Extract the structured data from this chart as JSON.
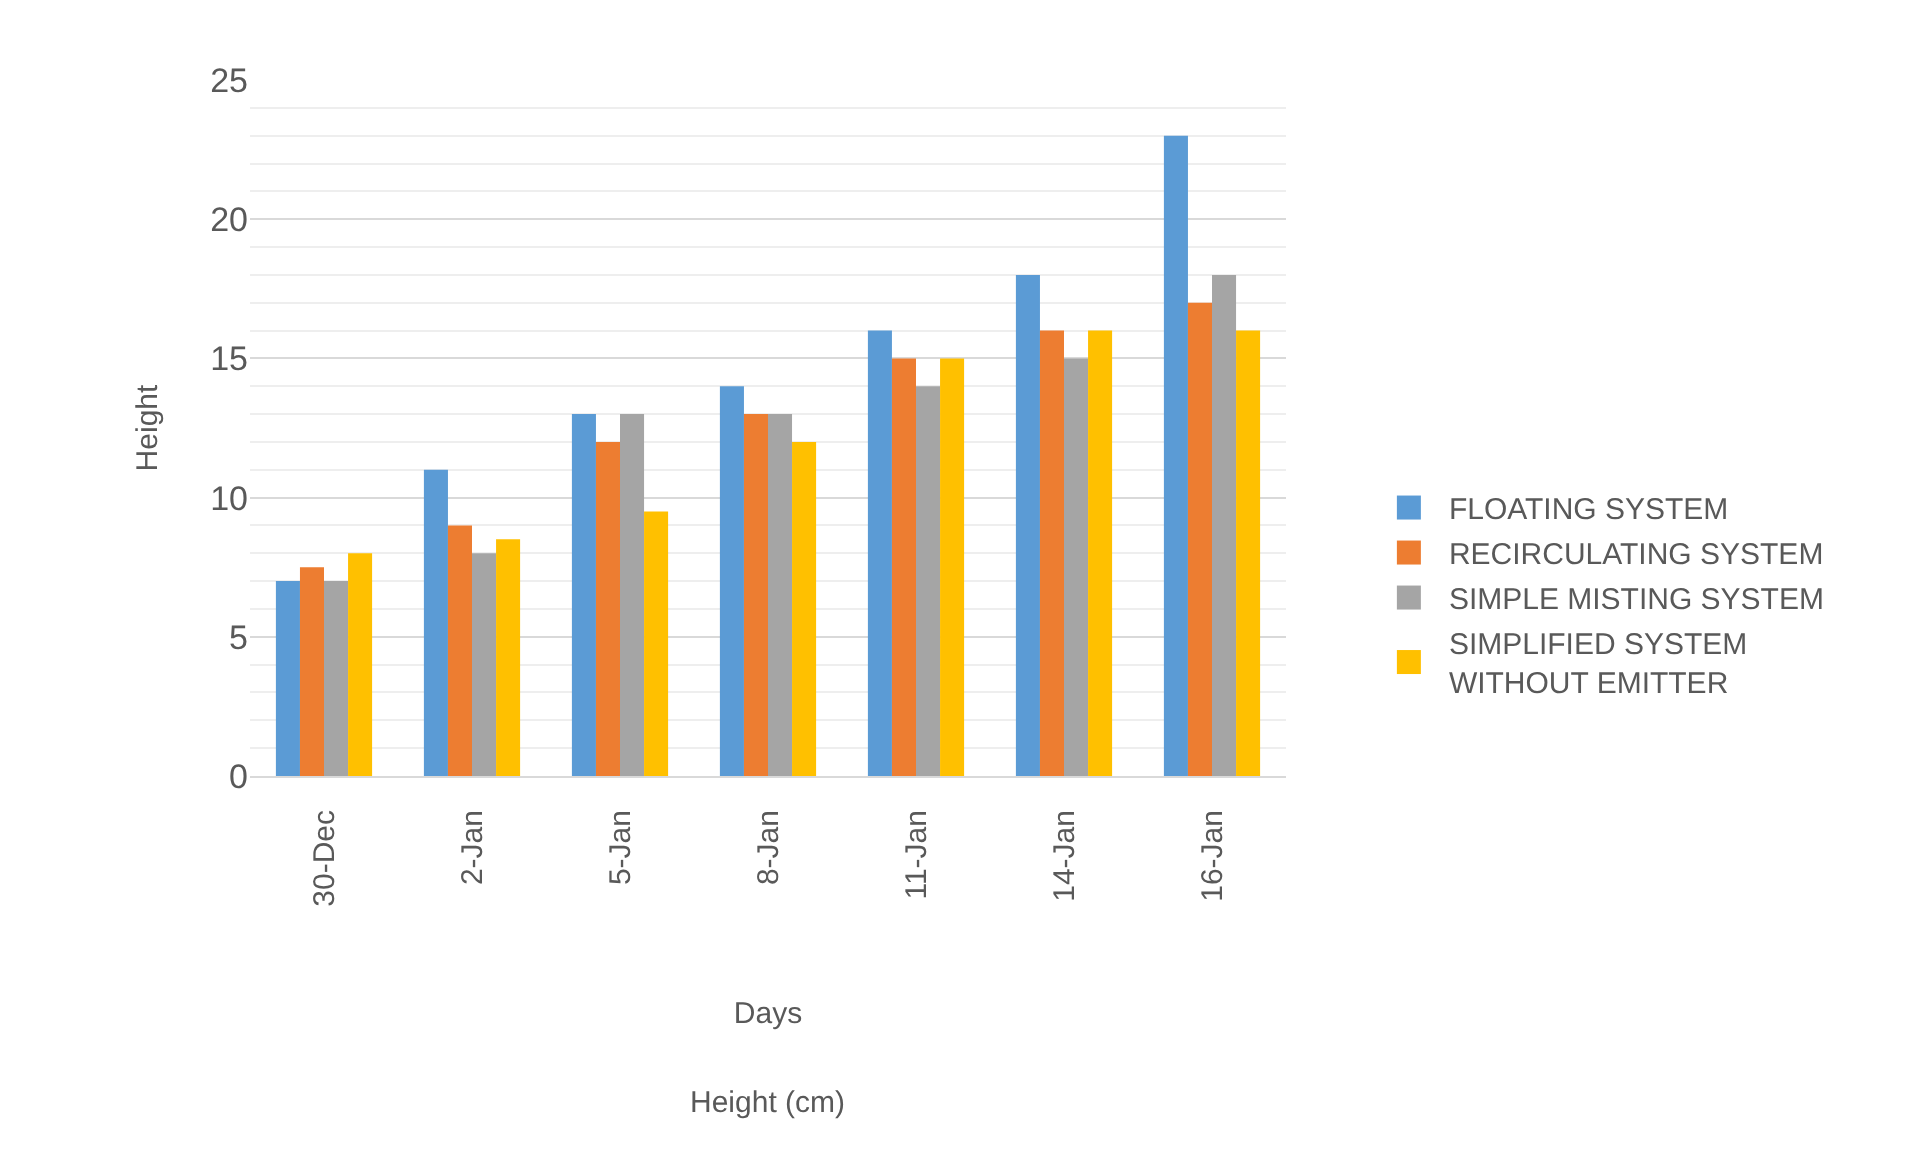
{
  "chart_data": {
    "type": "bar",
    "xlabel": "Days",
    "ylabel": "Height",
    "annotations": [
      "Height (cm)"
    ],
    "categories": [
      "30-Dec",
      "2-Jan",
      "5-Jan",
      "8-Jan",
      "11-Jan",
      "14-Jan",
      "16-Jan"
    ],
    "series": [
      {
        "name": "FLOATING SYSTEM",
        "color": "#5b9bd5",
        "values": [
          7,
          11,
          13,
          14,
          16,
          18,
          23
        ]
      },
      {
        "name": "RECIRCULATING SYSTEM",
        "color": "#ed7d31",
        "values": [
          7.5,
          9,
          12,
          13,
          15,
          16,
          17
        ]
      },
      {
        "name": "SIMPLE MISTING SYSTEM",
        "color": "#a5a5a5",
        "values": [
          7,
          8,
          13,
          13,
          14,
          15,
          18
        ]
      },
      {
        "name": "SIMPLIFIED SYSTEM WITHOUT EMITTER",
        "color": "#ffc000",
        "values": [
          8,
          8.5,
          9.5,
          12,
          15,
          16,
          16
        ]
      }
    ],
    "ylim": [
      0,
      25
    ],
    "yticks": [
      0,
      {
        "value": 1,
        "label": null
      },
      {
        "value": 2,
        "label": null
      },
      {
        "value": 3,
        "label": null
      },
      {
        "value": 4,
        "label": null
      },
      5,
      {
        "value": 6,
        "label": null
      },
      {
        "value": 7,
        "label": null
      },
      {
        "value": 8,
        "label": null
      },
      {
        "value": 9,
        "label": null
      },
      10,
      {
        "value": 11,
        "label": null
      },
      {
        "value": 12,
        "label": null
      },
      {
        "value": 13,
        "label": null
      },
      {
        "value": 14,
        "label": null
      },
      15,
      {
        "value": 16,
        "label": null
      },
      {
        "value": 17,
        "label": null
      },
      {
        "value": 18,
        "label": null
      },
      {
        "value": 19,
        "label": null
      },
      20,
      {
        "value": 21,
        "label": null
      },
      {
        "value": 22,
        "label": null
      },
      {
        "value": 23,
        "label": null
      },
      {
        "value": 24,
        "label": null
      },
      25
    ],
    "grid": "y",
    "legend": "right"
  }
}
